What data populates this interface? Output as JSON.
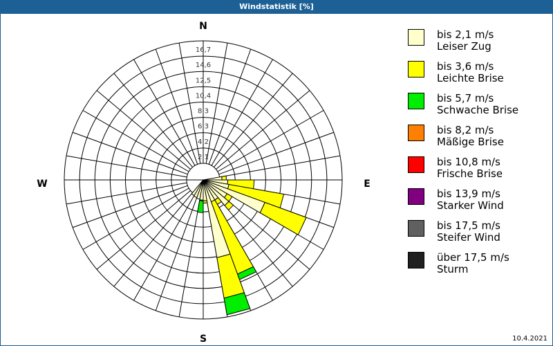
{
  "window": {
    "title": "Windstatistik [%]",
    "date": "10.4.2021"
  },
  "compass": {
    "N": "N",
    "E": "E",
    "S": "S",
    "W": "W"
  },
  "legend": [
    {
      "speed": "bis 2,1 m/s",
      "name": "Leiser Zug",
      "color": "#ffffcc"
    },
    {
      "speed": "bis 3,6 m/s",
      "name": "Leichte Brise",
      "color": "#ffff00"
    },
    {
      "speed": "bis 5,7 m/s",
      "name": "Schwache Brise",
      "color": "#00ee00"
    },
    {
      "speed": "bis 8,2 m/s",
      "name": "Mäßige Brise",
      "color": "#ff8000"
    },
    {
      "speed": "bis 10,8 m/s",
      "name": "Frische Brise",
      "color": "#ff0000"
    },
    {
      "speed": "bis 13,9 m/s",
      "name": "Starker Wind",
      "color": "#800080"
    },
    {
      "speed": "bis 17,5 m/s",
      "name": "Steifer Wind",
      "color": "#606060"
    },
    {
      "speed": "über 17,5 m/s",
      "name": "Sturm",
      "color": "#202020"
    }
  ],
  "chart_data": {
    "type": "wind-rose",
    "title": "Windstatistik [%]",
    "ring_labels": [
      "2,1",
      "4,2",
      "6,3",
      "8,3",
      "10,4",
      "12,5",
      "14,6",
      "16,7"
    ],
    "rmax": 16.7,
    "sector_width_deg": 10,
    "series_names": [
      "bis 2,1 m/s",
      "bis 3,6 m/s",
      "bis 5,7 m/s"
    ],
    "sectors": [
      {
        "dir": 85,
        "values": [
          0.3,
          0.6,
          0
        ]
      },
      {
        "dir": 95,
        "values": [
          1.1,
          3.6,
          0
        ]
      },
      {
        "dir": 105,
        "values": [
          1.3,
          7.6,
          0
        ]
      },
      {
        "dir": 115,
        "values": [
          6.7,
          6.0,
          0
        ]
      },
      {
        "dir": 125,
        "values": [
          1.5,
          0.8,
          0
        ]
      },
      {
        "dir": 135,
        "values": [
          2.3,
          0.8,
          0
        ]
      },
      {
        "dir": 145,
        "values": [
          0.9,
          0.7,
          0
        ]
      },
      {
        "dir": 155,
        "values": [
          0.9,
          10.5,
          0.8
        ]
      },
      {
        "dir": 165,
        "values": [
          8.5,
          5.6,
          2.3
        ]
      },
      {
        "dir": 175,
        "values": [
          0.6,
          0.3,
          0
        ]
      },
      {
        "dir": 185,
        "values": [
          0.5,
          0.1,
          1.6
        ]
      },
      {
        "dir": 195,
        "values": [
          0.4,
          0,
          0
        ]
      },
      {
        "dir": 205,
        "values": [
          0.3,
          0,
          0
        ]
      },
      {
        "dir": 215,
        "values": [
          0.2,
          0,
          0
        ]
      }
    ]
  }
}
